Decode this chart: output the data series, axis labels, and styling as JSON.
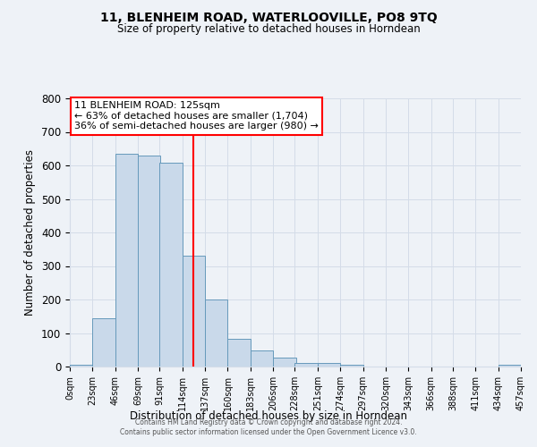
{
  "title": "11, BLENHEIM ROAD, WATERLOOVILLE, PO8 9TQ",
  "subtitle": "Size of property relative to detached houses in Horndean",
  "xlabel": "Distribution of detached houses by size in Horndean",
  "ylabel": "Number of detached properties",
  "bar_left_edges": [
    0,
    23,
    46,
    69,
    91,
    114,
    137,
    160,
    183,
    206,
    228,
    251,
    274,
    297,
    320,
    343,
    366,
    388,
    411,
    434
  ],
  "bar_heights": [
    5,
    143,
    635,
    630,
    608,
    332,
    199,
    84,
    48,
    28,
    10,
    10,
    5,
    0,
    0,
    0,
    0,
    0,
    0,
    5
  ],
  "bin_width": 23,
  "bar_color": "#c9d9ea",
  "bar_edge_color": "#6699bb",
  "property_line_x": 125,
  "property_line_color": "red",
  "annotation_line1": "11 BLENHEIM ROAD: 125sqm",
  "annotation_line2": "← 63% of detached houses are smaller (1,704)",
  "annotation_line3": "36% of semi-detached houses are larger (980) →",
  "ylim": [
    0,
    800
  ],
  "yticks": [
    0,
    100,
    200,
    300,
    400,
    500,
    600,
    700,
    800
  ],
  "xtick_labels": [
    "0sqm",
    "23sqm",
    "46sqm",
    "69sqm",
    "91sqm",
    "114sqm",
    "137sqm",
    "160sqm",
    "183sqm",
    "206sqm",
    "228sqm",
    "251sqm",
    "274sqm",
    "297sqm",
    "320sqm",
    "343sqm",
    "366sqm",
    "388sqm",
    "411sqm",
    "434sqm",
    "457sqm"
  ],
  "grid_color": "#d4dce8",
  "bg_color": "#eef2f7",
  "plot_bg_color": "#eef2f7",
  "footer_line1": "Contains HM Land Registry data © Crown copyright and database right 2024.",
  "footer_line2": "Contains public sector information licensed under the Open Government Licence v3.0."
}
